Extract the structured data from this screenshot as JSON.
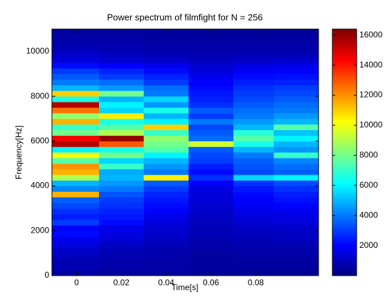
{
  "chart_data": {
    "type": "heatmap",
    "title": "Power spectrum of filmfight for N = 256",
    "x_label": "Time[s]",
    "y_label": "Frequency[Hz]",
    "colormap": "jet",
    "x_edges": [
      -0.011,
      0.01,
      0.03,
      0.05,
      0.07,
      0.088,
      0.108
    ],
    "y_edges": [
      0,
      250,
      500,
      750,
      1000,
      1250,
      1500,
      1750,
      2000,
      2250,
      2500,
      2750,
      3000,
      3250,
      3500,
      3750,
      4000,
      4250,
      4500,
      4750,
      5000,
      5250,
      5500,
      5750,
      6000,
      6250,
      6500,
      6750,
      7000,
      7250,
      7500,
      7750,
      8000,
      8250,
      8500,
      8750,
      9000,
      9250,
      9500,
      9750,
      10000,
      10250,
      10500,
      10750,
      11000
    ],
    "xlim": [
      -0.011,
      0.108
    ],
    "ylim": [
      0,
      11000
    ],
    "xticks": [
      0,
      0.02,
      0.04,
      0.06,
      0.08
    ],
    "yticks": [
      0,
      2000,
      4000,
      6000,
      8000,
      10000
    ],
    "clim": [
      0,
      16400
    ],
    "cticks": [
      2000,
      4000,
      6000,
      8000,
      10000,
      12000,
      14000,
      16000
    ],
    "z": [
      [
        600,
        500,
        500,
        400,
        400,
        400
      ],
      [
        900,
        700,
        700,
        500,
        500,
        500
      ],
      [
        800,
        700,
        600,
        500,
        500,
        500
      ],
      [
        1000,
        800,
        700,
        500,
        600,
        600
      ],
      [
        1200,
        900,
        800,
        600,
        700,
        700
      ],
      [
        1500,
        1100,
        900,
        700,
        800,
        800
      ],
      [
        1800,
        1400,
        1100,
        800,
        900,
        1000
      ],
      [
        2200,
        1600,
        1200,
        900,
        1000,
        1100
      ],
      [
        2000,
        1700,
        1300,
        900,
        1100,
        1200
      ],
      [
        3000,
        2200,
        1500,
        1000,
        1300,
        1400
      ],
      [
        2500,
        2400,
        1700,
        1100,
        1500,
        1600
      ],
      [
        2800,
        2600,
        2000,
        1200,
        1700,
        1800
      ],
      [
        3200,
        2800,
        2200,
        1300,
        1900,
        2100
      ],
      [
        3600,
        3000,
        2400,
        1400,
        2000,
        2300
      ],
      [
        11500,
        3400,
        2600,
        1500,
        2200,
        2500
      ],
      [
        4200,
        4000,
        3000,
        1600,
        2400,
        2800
      ],
      [
        5000,
        4500,
        3500,
        2000,
        2800,
        3200
      ],
      [
        9000,
        5000,
        10500,
        2800,
        5500,
        6000
      ],
      [
        11500,
        4800,
        4000,
        2200,
        3200,
        3600
      ],
      [
        12000,
        7000,
        4500,
        2500,
        3400,
        3800
      ],
      [
        7500,
        5500,
        5000,
        3000,
        3600,
        4200
      ],
      [
        10000,
        8000,
        6000,
        3200,
        4000,
        7000
      ],
      [
        6000,
        6500,
        7500,
        3500,
        5000,
        4500
      ],
      [
        15500,
        13000,
        8000,
        9500,
        6500,
        5000
      ],
      [
        14500,
        16000,
        8500,
        3800,
        7500,
        6000
      ],
      [
        8000,
        9000,
        7000,
        3500,
        6800,
        5200
      ],
      [
        7000,
        7500,
        11000,
        3200,
        5000,
        7500
      ],
      [
        11500,
        6500,
        6000,
        4000,
        4500,
        5000
      ],
      [
        8500,
        10500,
        5000,
        3000,
        4000,
        4500
      ],
      [
        12500,
        5500,
        6500,
        3500,
        3800,
        4000
      ],
      [
        15500,
        6000,
        4500,
        2800,
        3500,
        3800
      ],
      [
        6500,
        5000,
        5500,
        2500,
        3200,
        3500
      ],
      [
        11000,
        8000,
        4000,
        2400,
        3000,
        3200
      ],
      [
        5000,
        4500,
        3800,
        2200,
        2800,
        3000
      ],
      [
        4000,
        3800,
        3000,
        2000,
        2500,
        2600
      ],
      [
        3500,
        3000,
        2600,
        1800,
        2200,
        2300
      ],
      [
        3000,
        2600,
        2200,
        1500,
        1900,
        2000
      ],
      [
        2200,
        2000,
        1800,
        1300,
        1600,
        1700
      ],
      [
        1500,
        1300,
        1200,
        1000,
        1100,
        1200
      ],
      [
        1200,
        1000,
        900,
        800,
        900,
        900
      ],
      [
        900,
        800,
        700,
        700,
        700,
        700
      ],
      [
        700,
        700,
        600,
        600,
        600,
        600
      ],
      [
        600,
        600,
        500,
        500,
        500,
        500
      ],
      [
        500,
        500,
        500,
        400,
        400,
        400
      ]
    ]
  }
}
